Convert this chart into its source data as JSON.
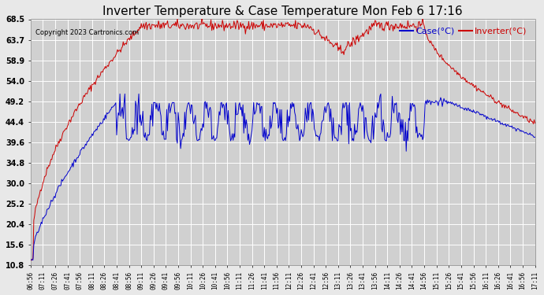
{
  "title": "Inverter Temperature & Case Temperature Mon Feb 6 17:16",
  "copyright": "Copyright 2023 Cartronics.com",
  "legend_case": "Case(°C)",
  "legend_inverter": "Inverter(°C)",
  "yticks": [
    10.8,
    15.6,
    20.4,
    25.2,
    30.0,
    34.8,
    39.6,
    44.4,
    49.2,
    54.0,
    58.9,
    63.7,
    68.5
  ],
  "ymin": 10.8,
  "ymax": 68.5,
  "bg_color": "#e8e8e8",
  "plot_bg_color": "#d0d0d0",
  "grid_color": "#ffffff",
  "inverter_color": "#cc0000",
  "case_color": "#0000cc",
  "title_color": "#000000",
  "n_points": 620
}
